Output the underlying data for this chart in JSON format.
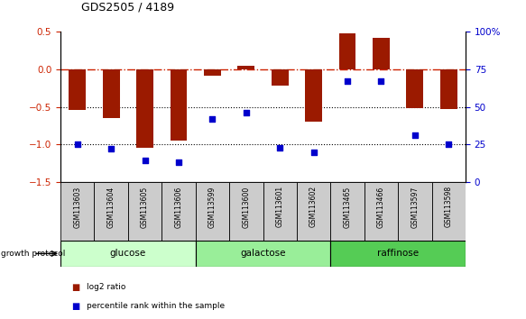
{
  "title": "GDS2505 / 4189",
  "samples": [
    "GSM113603",
    "GSM113604",
    "GSM113605",
    "GSM113606",
    "GSM113599",
    "GSM113600",
    "GSM113601",
    "GSM113602",
    "GSM113465",
    "GSM113466",
    "GSM113597",
    "GSM113598"
  ],
  "log2_ratio": [
    -0.54,
    -0.65,
    -1.05,
    -0.95,
    -0.08,
    0.05,
    -0.22,
    -0.7,
    0.48,
    0.42,
    -0.52,
    -0.53
  ],
  "percentile_rank": [
    25,
    22,
    14,
    13,
    42,
    46,
    23,
    20,
    67,
    67,
    31,
    25
  ],
  "groups": [
    {
      "label": "glucose",
      "start": 0,
      "end": 4,
      "color": "#ccffcc"
    },
    {
      "label": "galactose",
      "start": 4,
      "end": 8,
      "color": "#99ee99"
    },
    {
      "label": "raffinose",
      "start": 8,
      "end": 12,
      "color": "#55cc55"
    }
  ],
  "ylim_left": [
    -1.5,
    0.5
  ],
  "ylim_right": [
    0,
    100
  ],
  "bar_color": "#9b1a00",
  "dot_color": "#0000cc",
  "hline_color": "#cc2200",
  "dotline_color": "black",
  "bg_color": "white",
  "tick_label_color_left": "#cc2200",
  "tick_label_color_right": "#0000cc",
  "left_yticks": [
    0.5,
    0.0,
    -0.5,
    -1.0,
    -1.5
  ],
  "right_yticks": [
    0,
    25,
    50,
    75,
    100
  ],
  "right_yticklabels": [
    "0",
    "25",
    "50",
    "75",
    "100%"
  ],
  "label_bg": "#cccccc",
  "bar_width": 0.5
}
